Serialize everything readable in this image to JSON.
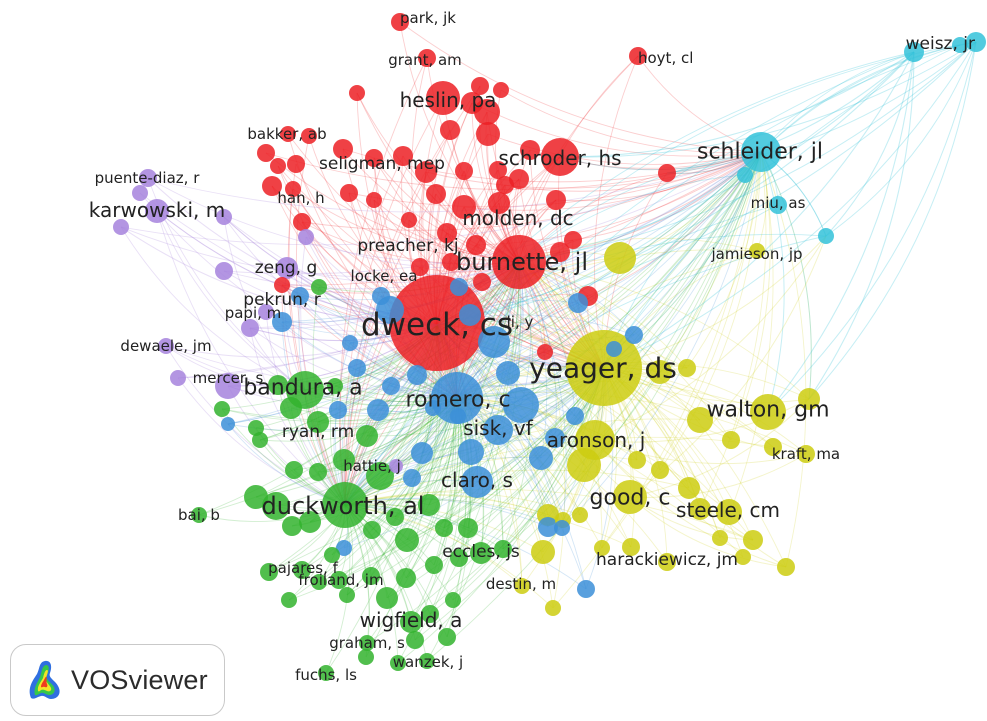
{
  "app": {
    "brand_name": "VOSviewer"
  },
  "colors": {
    "red": "#ec2024",
    "yellow": "#cccc10",
    "blue": "#3c8fd8",
    "green": "#33b32e",
    "purple": "#a682dd",
    "cyan": "#34c2d9"
  },
  "network": {
    "labeled_nodes": [
      {
        "label": "park, jk",
        "cluster": "red",
        "weight": 1
      },
      {
        "label": "grant, am",
        "cluster": "red",
        "weight": 1
      },
      {
        "label": "hoyt, cl",
        "cluster": "red",
        "weight": 1
      },
      {
        "label": "heslin, pa",
        "cluster": "red",
        "weight": 3
      },
      {
        "label": "bakker, ab",
        "cluster": "red",
        "weight": 1
      },
      {
        "label": "seligman, mep",
        "cluster": "red",
        "weight": 2
      },
      {
        "label": "schroder, hs",
        "cluster": "red",
        "weight": 3
      },
      {
        "label": "han, h",
        "cluster": "red",
        "weight": 1
      },
      {
        "label": "molden, dc",
        "cluster": "red",
        "weight": 3
      },
      {
        "label": "preacher, kj",
        "cluster": "red",
        "weight": 2
      },
      {
        "label": "burnette, jl",
        "cluster": "red",
        "weight": 5
      },
      {
        "label": "locke, ea",
        "cluster": "red",
        "weight": 1
      },
      {
        "label": "dweck, cs",
        "cluster": "red",
        "weight": 10
      },
      {
        "label": "weisz, jr",
        "cluster": "cyan",
        "weight": 2
      },
      {
        "label": "schleider, jl",
        "cluster": "cyan",
        "weight": 4
      },
      {
        "label": "miu, as",
        "cluster": "cyan",
        "weight": 1
      },
      {
        "label": "jamieson, jp",
        "cluster": "yellow",
        "weight": 1
      },
      {
        "label": "yeager, ds",
        "cluster": "yellow",
        "weight": 9
      },
      {
        "label": "walton, gm",
        "cluster": "yellow",
        "weight": 4
      },
      {
        "label": "kraft, ma",
        "cluster": "yellow",
        "weight": 1
      },
      {
        "label": "aronson, j",
        "cluster": "yellow",
        "weight": 3
      },
      {
        "label": "good, c",
        "cluster": "yellow",
        "weight": 4
      },
      {
        "label": "steele, cm",
        "cluster": "yellow",
        "weight": 3
      },
      {
        "label": "harackiewicz, jm",
        "cluster": "yellow",
        "weight": 2
      },
      {
        "label": "destin, m",
        "cluster": "yellow",
        "weight": 1
      },
      {
        "label": "puente-diaz, r",
        "cluster": "purple",
        "weight": 1
      },
      {
        "label": "karwowski, m",
        "cluster": "purple",
        "weight": 3
      },
      {
        "label": "zeng, g",
        "cluster": "purple",
        "weight": 2
      },
      {
        "label": "papi, m",
        "cluster": "purple",
        "weight": 1
      },
      {
        "label": "dewaele, jm",
        "cluster": "purple",
        "weight": 1
      },
      {
        "label": "mercer, s",
        "cluster": "purple",
        "weight": 1
      },
      {
        "label": "bandura, a",
        "cluster": "green",
        "weight": 4
      },
      {
        "label": "pekrun, r",
        "cluster": "blue",
        "weight": 2
      },
      {
        "label": "li, y",
        "cluster": "blue",
        "weight": 1
      },
      {
        "label": "romero, c",
        "cluster": "blue",
        "weight": 4
      },
      {
        "label": "sisk, vf",
        "cluster": "blue",
        "weight": 3
      },
      {
        "label": "claro, s",
        "cluster": "blue",
        "weight": 3
      },
      {
        "label": "ryan, rm",
        "cluster": "green",
        "weight": 2
      },
      {
        "label": "hattie, j",
        "cluster": "green",
        "weight": 1
      },
      {
        "label": "duckworth, al",
        "cluster": "green",
        "weight": 5
      },
      {
        "label": "bai, b",
        "cluster": "green",
        "weight": 1
      },
      {
        "label": "eccles, js",
        "cluster": "green",
        "weight": 2
      },
      {
        "label": "pajares, f",
        "cluster": "green",
        "weight": 1
      },
      {
        "label": "froiland, jm",
        "cluster": "green",
        "weight": 1
      },
      {
        "label": "wigfield, a",
        "cluster": "green",
        "weight": 3
      },
      {
        "label": "graham, s",
        "cluster": "green",
        "weight": 1
      },
      {
        "label": "wanzek, j",
        "cluster": "green",
        "weight": 1
      },
      {
        "label": "fuchs, ls",
        "cluster": "green",
        "weight": 1
      }
    ]
  }
}
